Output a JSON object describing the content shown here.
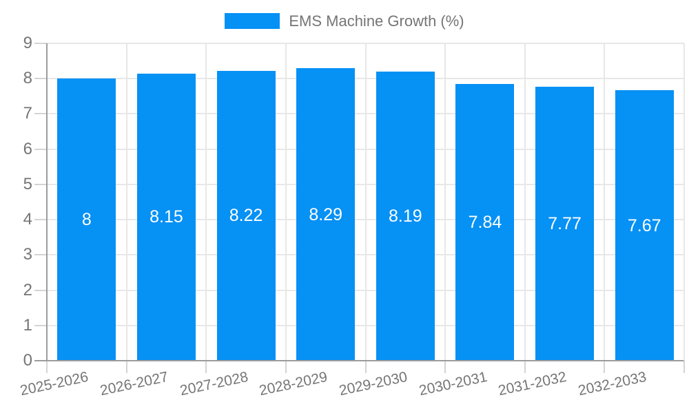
{
  "chart_data": {
    "type": "bar",
    "title": "EMS Machine Growth (%)",
    "legend": {
      "label": "EMS Machine Growth (%)",
      "position": "top"
    },
    "categories": [
      "2025-2026",
      "2026-2027",
      "2027-2028",
      "2028-2029",
      "2029-2030",
      "2030-2031",
      "2031-2032",
      "2032-2033"
    ],
    "values": [
      8,
      8.15,
      8.22,
      8.29,
      8.19,
      7.84,
      7.77,
      7.67
    ],
    "value_labels": [
      "8",
      "8.15",
      "8.22",
      "8.29",
      "8.19",
      "7.84",
      "7.77",
      "7.67"
    ],
    "xlabel": "",
    "ylabel": "",
    "ylim": [
      0,
      9
    ],
    "yticks": [
      0,
      1,
      2,
      3,
      4,
      5,
      6,
      7,
      8,
      9
    ],
    "grid": true,
    "bar_color": "#0691f5",
    "colors": {
      "bar": "#0691f5",
      "value_label": "#ffffff",
      "axis_line": "#9c9c9c",
      "gridline": "#e7e7e7",
      "tick": "#d4d4d4",
      "tick_label": "#757575",
      "legend_label": "#757575",
      "background": "#ffffff"
    }
  }
}
